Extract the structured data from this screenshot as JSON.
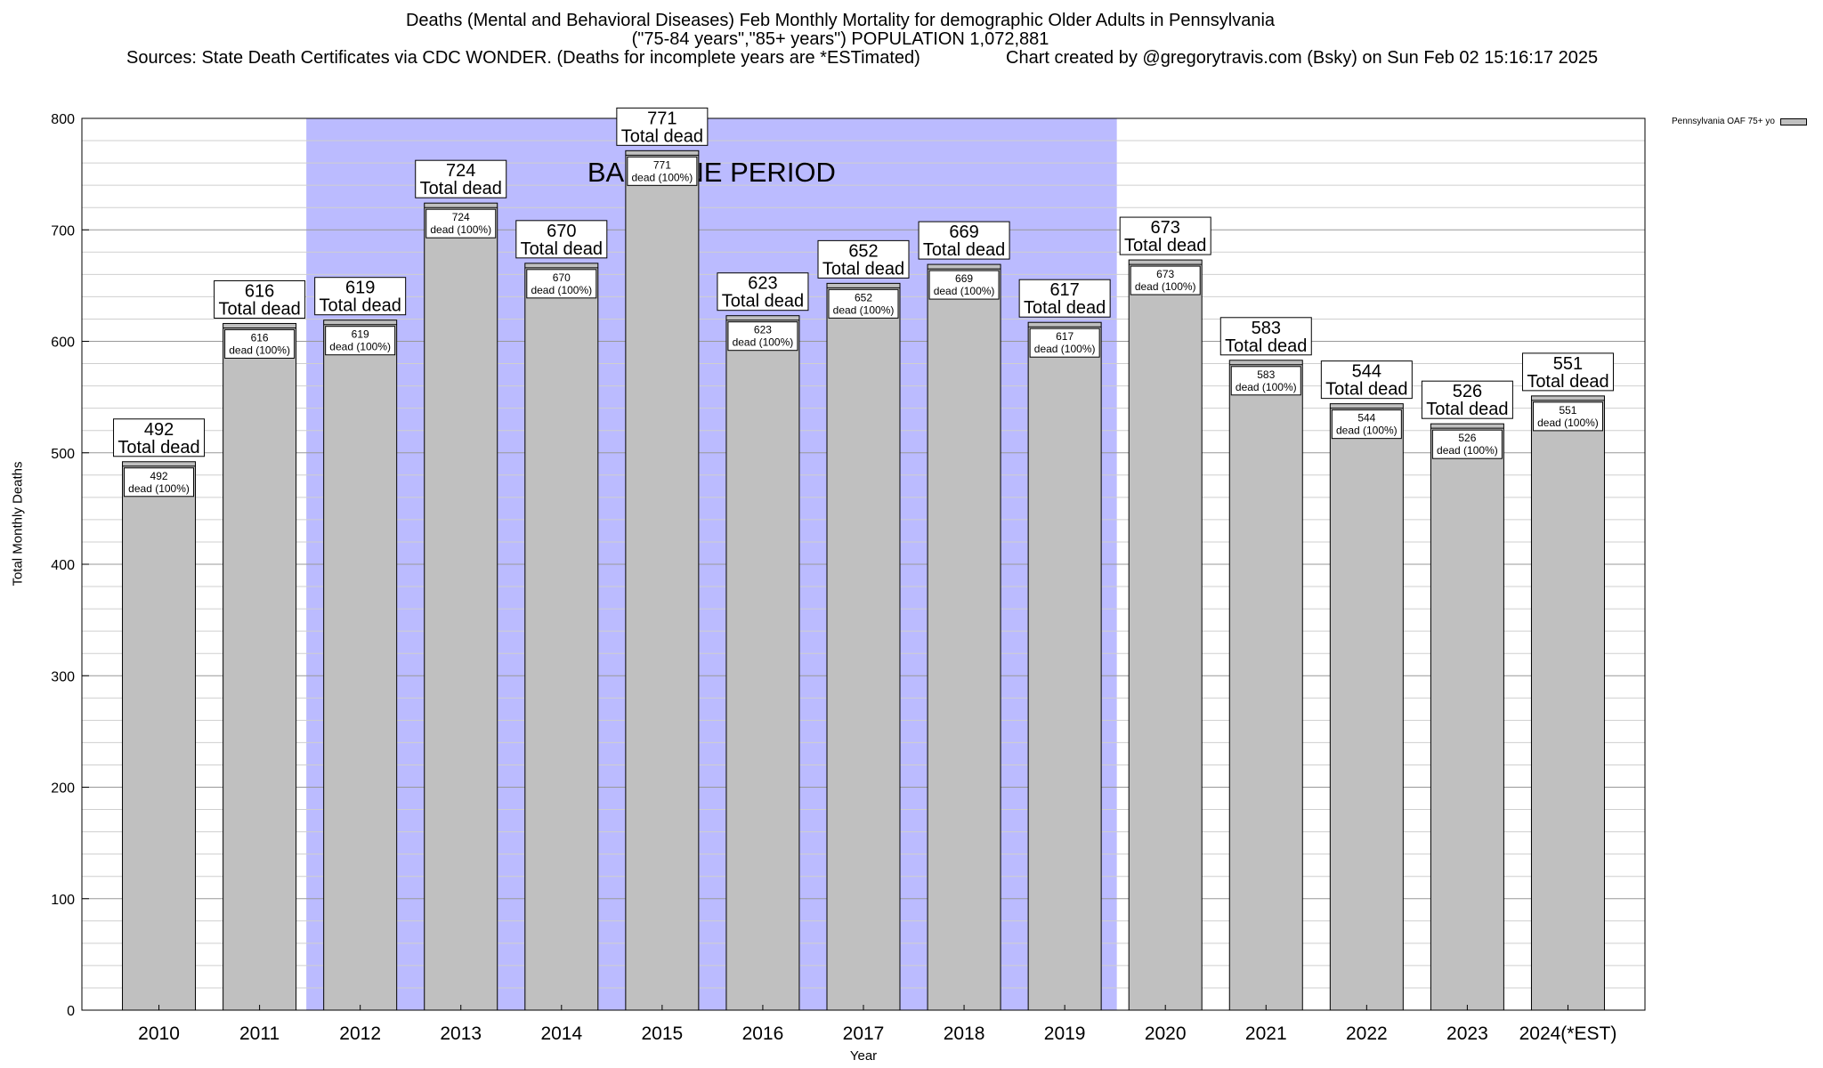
{
  "chart_data": {
    "type": "bar",
    "title": "Deaths (Mental and Behavioral Diseases) Feb Monthly Mortality for demographic Older Adults in Pennsylvania",
    "subtitle": "(\"75-84 years\",\"85+ years\") POPULATION 1,072,881",
    "sources": "Sources: State Death Certificates via CDC WONDER. (Deaths for incomplete years are *ESTimated)",
    "credit": "Chart created by @gregorytravis.com (Bsky) on Sun Feb 02 15:16:17 2025",
    "xlabel": "Year",
    "ylabel": "Total Monthly Deaths",
    "ylim": [
      0,
      800
    ],
    "yticks": [
      0,
      100,
      200,
      300,
      400,
      500,
      600,
      700,
      800
    ],
    "categories": [
      "2010",
      "2011",
      "2012",
      "2013",
      "2014",
      "2015",
      "2016",
      "2017",
      "2018",
      "2019",
      "2020",
      "2021",
      "2022",
      "2023",
      "2024(*EST)"
    ],
    "series": [
      {
        "name": "Pennsylvania OAF 75+ yo",
        "color": "#c0c0c0",
        "values": [
          492,
          616,
          619,
          724,
          670,
          771,
          623,
          652,
          669,
          617,
          673,
          583,
          544,
          526,
          551
        ]
      }
    ],
    "total_label": "Total dead",
    "bar_label_suffix": "dead (100%)",
    "baseline": {
      "label": "BASELINE PERIOD",
      "start": "2012",
      "end": "2019",
      "color": "#bbbbff"
    },
    "legend_position": "top-right"
  }
}
